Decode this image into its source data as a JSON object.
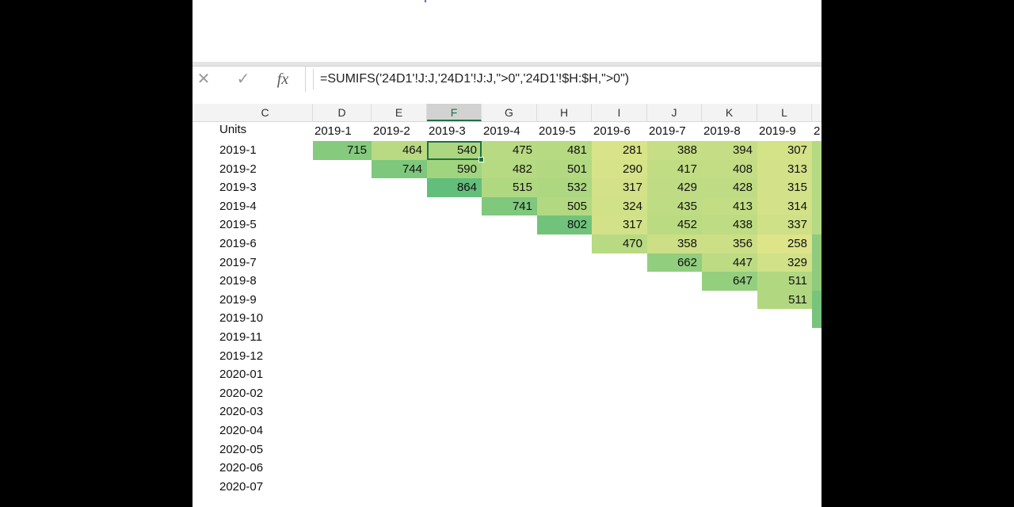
{
  "formula_bar": {
    "cancel_icon": "close-icon",
    "confirm_icon": "check-icon",
    "function_label": "fx",
    "formula": "=SUMIFS('24D1'!J:J,'24D1'!J:J,\">0\",'24D1'!$H:$H,\">0\")"
  },
  "column_headers": [
    "C",
    "D",
    "E",
    "F",
    "G",
    "H",
    "I",
    "J",
    "K",
    "L"
  ],
  "selected_column": "F",
  "units_label": "Units",
  "header_row": [
    "2019-1",
    "2019-2",
    "2019-3",
    "2019-4",
    "2019-5",
    "2019-6",
    "2019-7",
    "2019-8",
    "2019-9",
    "2"
  ],
  "row_labels": [
    "2019-1",
    "2019-2",
    "2019-3",
    "2019-4",
    "2019-5",
    "2019-6",
    "2019-7",
    "2019-8",
    "2019-9",
    "2019-10",
    "2019-11",
    "2019-12",
    "2020-01",
    "2020-02",
    "2020-03",
    "2020-04",
    "2020-05",
    "2020-06",
    "2020-07"
  ],
  "grid": [
    [
      715,
      464,
      540,
      475,
      481,
      281,
      388,
      394,
      307
    ],
    [
      null,
      744,
      590,
      482,
      501,
      290,
      417,
      408,
      313
    ],
    [
      null,
      null,
      864,
      515,
      532,
      317,
      429,
      428,
      315
    ],
    [
      null,
      null,
      null,
      741,
      505,
      324,
      435,
      413,
      314
    ],
    [
      null,
      null,
      null,
      null,
      802,
      317,
      452,
      438,
      337
    ],
    [
      null,
      null,
      null,
      null,
      null,
      470,
      358,
      356,
      258
    ],
    [
      null,
      null,
      null,
      null,
      null,
      null,
      662,
      447,
      329
    ],
    [
      null,
      null,
      null,
      null,
      null,
      null,
      null,
      647,
      511
    ],
    [
      null,
      null,
      null,
      null,
      null,
      null,
      null,
      null,
      511
    ]
  ],
  "active_cell": "F4",
  "color_scale": {
    "high": "#63be7b",
    "mid": "#a8d67f",
    "low": "#dde48a"
  }
}
